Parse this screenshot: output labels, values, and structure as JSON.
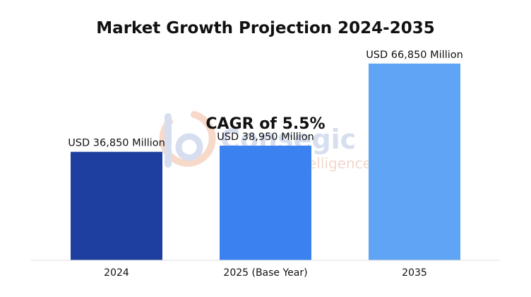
{
  "chart_data": {
    "type": "bar",
    "title": "Market Growth Projection 2024-2035",
    "categories": [
      "2024",
      "2025 (Base Year)",
      "2035"
    ],
    "values": [
      36850,
      38950,
      66850
    ],
    "data_labels": [
      "USD 36,850 Million",
      "USD 38,950 Million",
      "USD 66,850 Million"
    ],
    "unit": "USD Million",
    "ylim": [
      0,
      75000
    ],
    "y_axis_visible": false,
    "grid": false,
    "legend": "none",
    "annotation": "CAGR of 5.5%",
    "colors": [
      "#1f3fa0",
      "#3b82f0",
      "#5fa4f5"
    ]
  },
  "watermark": {
    "brand": "Consegic",
    "tagline": "Business Intelligence",
    "colors": {
      "text": "#d6deef",
      "accent": "#f7d9c9"
    }
  }
}
